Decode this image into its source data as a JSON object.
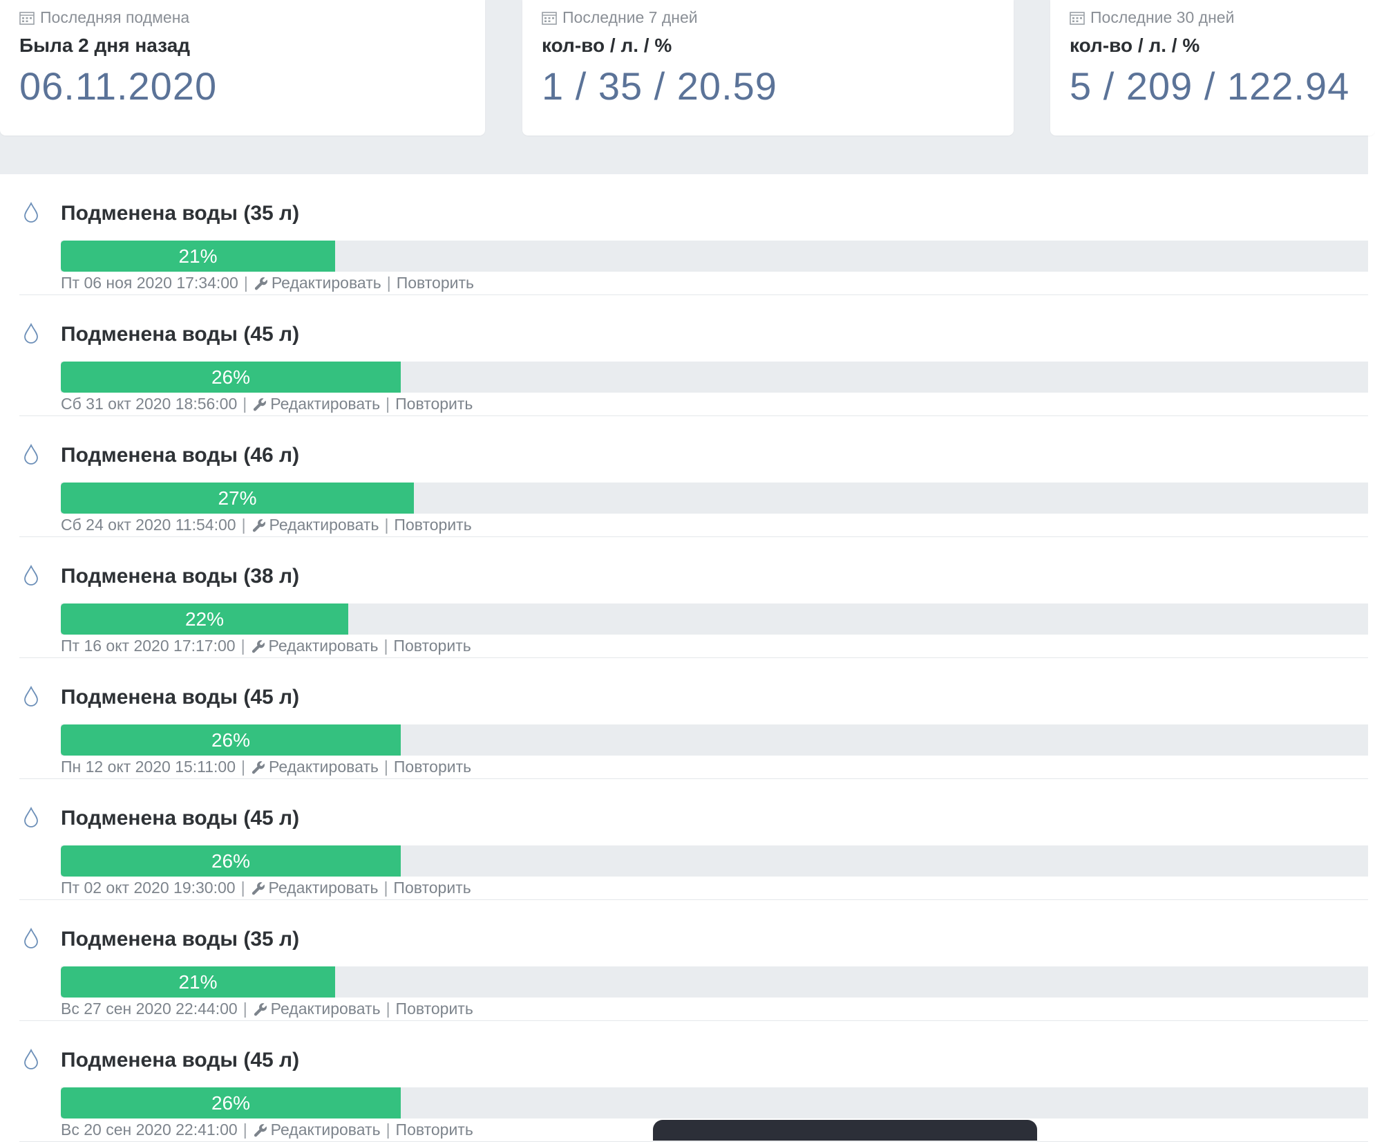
{
  "cards": [
    {
      "caption": "Последняя подмена",
      "subtitle": "Была 2 дня назад",
      "value": "06.11.2020",
      "icon": "calendar-icon"
    },
    {
      "caption": "Последние 7 дней",
      "subtitle": "кол-во / л. / %",
      "value": "1 / 35 / 20.59",
      "icon": "calendar-icon"
    },
    {
      "caption": "Последние 30 дней",
      "subtitle": "кол-во / л. / %",
      "value": "5 / 209 / 122.94",
      "icon": "calendar-icon"
    }
  ],
  "actions": {
    "edit": "Редактировать",
    "repeat": "Повторить"
  },
  "colors": {
    "progress_fill": "#34c17f",
    "progress_track": "#e9ecef",
    "value_text": "#5b7398",
    "background_band": "#eaedf0"
  },
  "entries": [
    {
      "title": "Подменена воды (35 л)",
      "percent_label": "21%",
      "percent": 21,
      "datetime": "Пт 06 ноя 2020 17:34:00"
    },
    {
      "title": "Подменена воды (45 л)",
      "percent_label": "26%",
      "percent": 26,
      "datetime": "Сб 31 окт 2020 18:56:00"
    },
    {
      "title": "Подменена воды (46 л)",
      "percent_label": "27%",
      "percent": 27,
      "datetime": "Сб 24 окт 2020 11:54:00"
    },
    {
      "title": "Подменена воды (38 л)",
      "percent_label": "22%",
      "percent": 22,
      "datetime": "Пт 16 окт 2020 17:17:00"
    },
    {
      "title": "Подменена воды (45 л)",
      "percent_label": "26%",
      "percent": 26,
      "datetime": "Пн 12 окт 2020 15:11:00"
    },
    {
      "title": "Подменена воды (45 л)",
      "percent_label": "26%",
      "percent": 26,
      "datetime": "Пт 02 окт 2020 19:30:00"
    },
    {
      "title": "Подменена воды (35 л)",
      "percent_label": "21%",
      "percent": 21,
      "datetime": "Вс 27 сен 2020 22:44:00"
    },
    {
      "title": "Подменена воды (45 л)",
      "percent_label": "26%",
      "percent": 26,
      "datetime": "Вс 20 сен 2020 22:41:00"
    }
  ]
}
